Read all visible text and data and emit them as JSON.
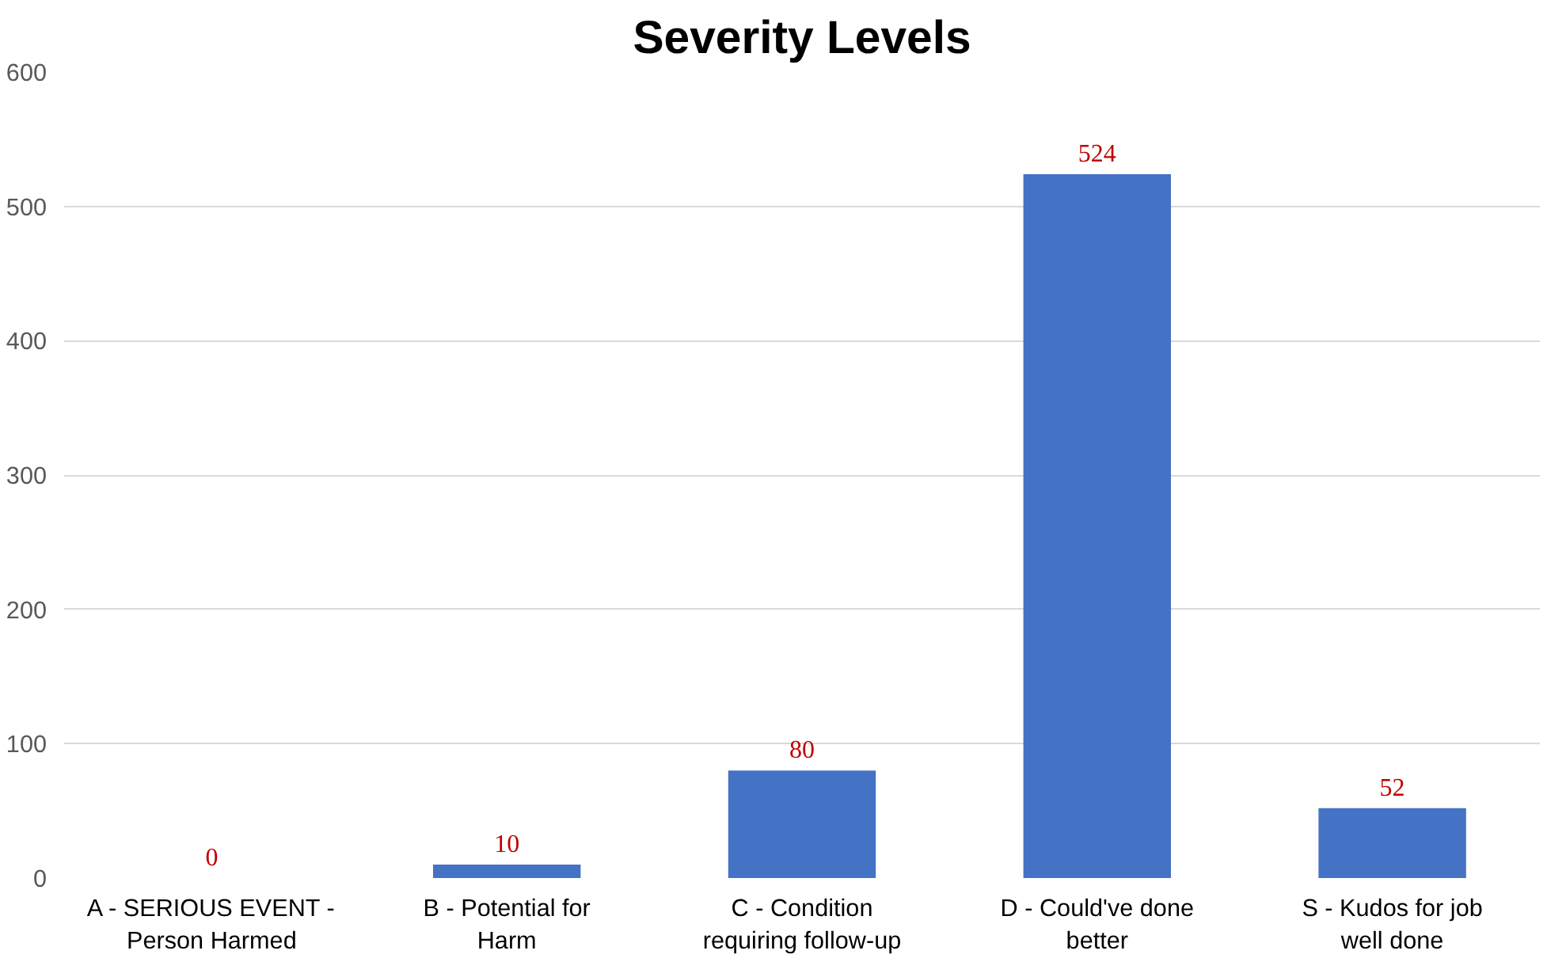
{
  "chart_data": {
    "type": "bar",
    "title": "Severity Levels",
    "categories": [
      "A - SERIOUS EVENT - Person Harmed",
      "B - Potential for Harm",
      "C - Condition requiring follow-up",
      "D - Could've done better",
      "S - Kudos for job well done"
    ],
    "values": [
      0,
      10,
      80,
      524,
      52
    ],
    "color": "#4472c4",
    "data_labels": true,
    "ylim": [
      0,
      600
    ],
    "yticks": [
      0,
      100,
      200,
      300,
      400,
      500,
      600
    ],
    "grid": "y"
  }
}
